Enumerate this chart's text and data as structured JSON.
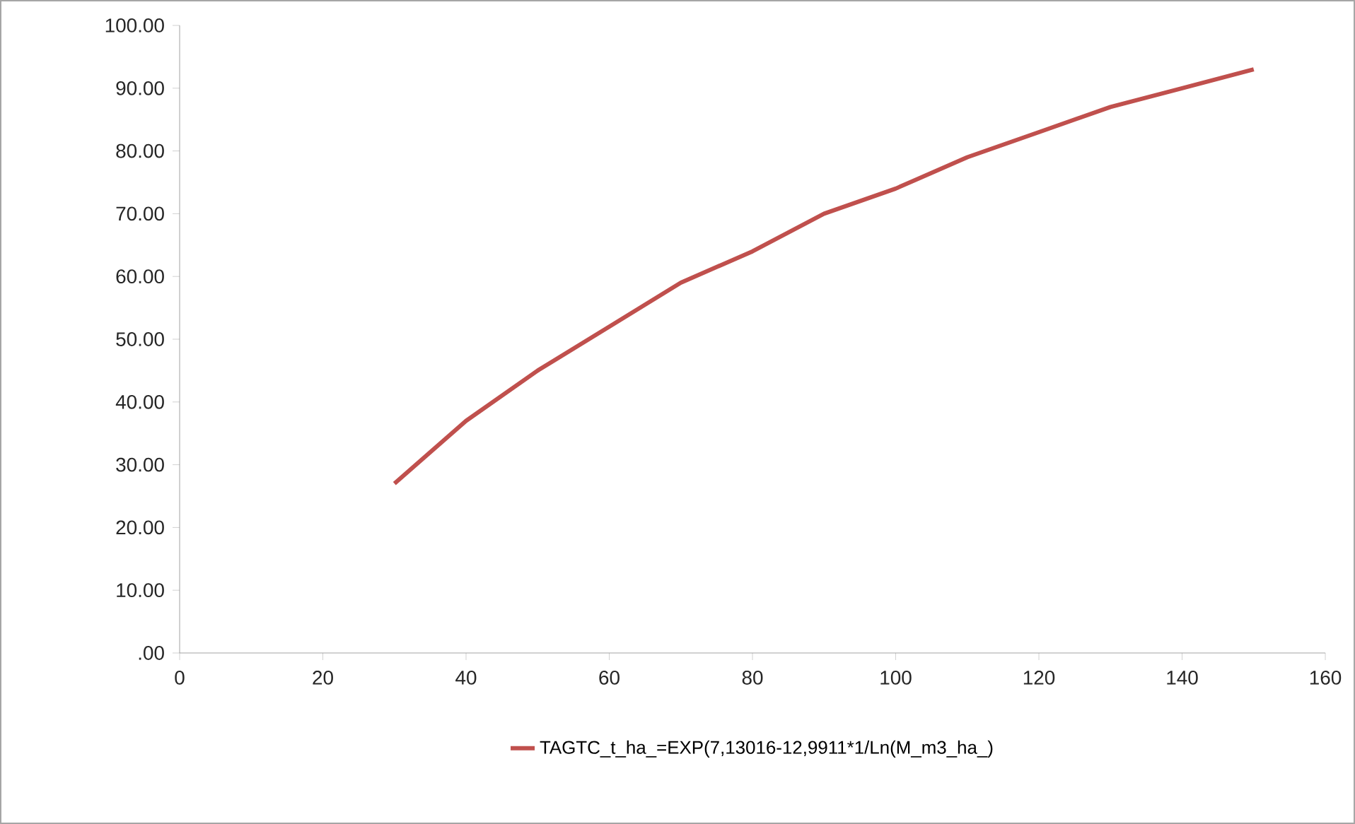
{
  "chart_data": {
    "type": "line",
    "x": [
      30,
      40,
      50,
      60,
      70,
      80,
      90,
      100,
      110,
      120,
      130,
      140,
      150
    ],
    "series": [
      {
        "name": "TAGTC_t_ha_=EXP(7,13016-12,9911*1/Ln(M_m3_ha_)",
        "color": "#c0504d",
        "values": [
          27,
          37,
          45,
          52,
          59,
          64,
          70,
          74,
          79,
          83,
          87,
          90,
          93
        ]
      }
    ],
    "xlim": [
      0,
      160
    ],
    "xticks": [
      0,
      20,
      40,
      60,
      80,
      100,
      120,
      140,
      160
    ],
    "ylim": [
      0,
      100
    ],
    "yticks": [
      {
        "value": 0,
        "label": ".00"
      },
      {
        "value": 10,
        "label": "10.00"
      },
      {
        "value": 20,
        "label": "20.00"
      },
      {
        "value": 30,
        "label": "30.00"
      },
      {
        "value": 40,
        "label": "40.00"
      },
      {
        "value": 50,
        "label": "50.00"
      },
      {
        "value": 60,
        "label": "60.00"
      },
      {
        "value": 70,
        "label": "70.00"
      },
      {
        "value": 80,
        "label": "80.00"
      },
      {
        "value": 90,
        "label": "90.00"
      },
      {
        "value": 100,
        "label": "100.00"
      }
    ],
    "grid": false,
    "legend": "bottom",
    "marker": "none",
    "line_style": "solid"
  }
}
